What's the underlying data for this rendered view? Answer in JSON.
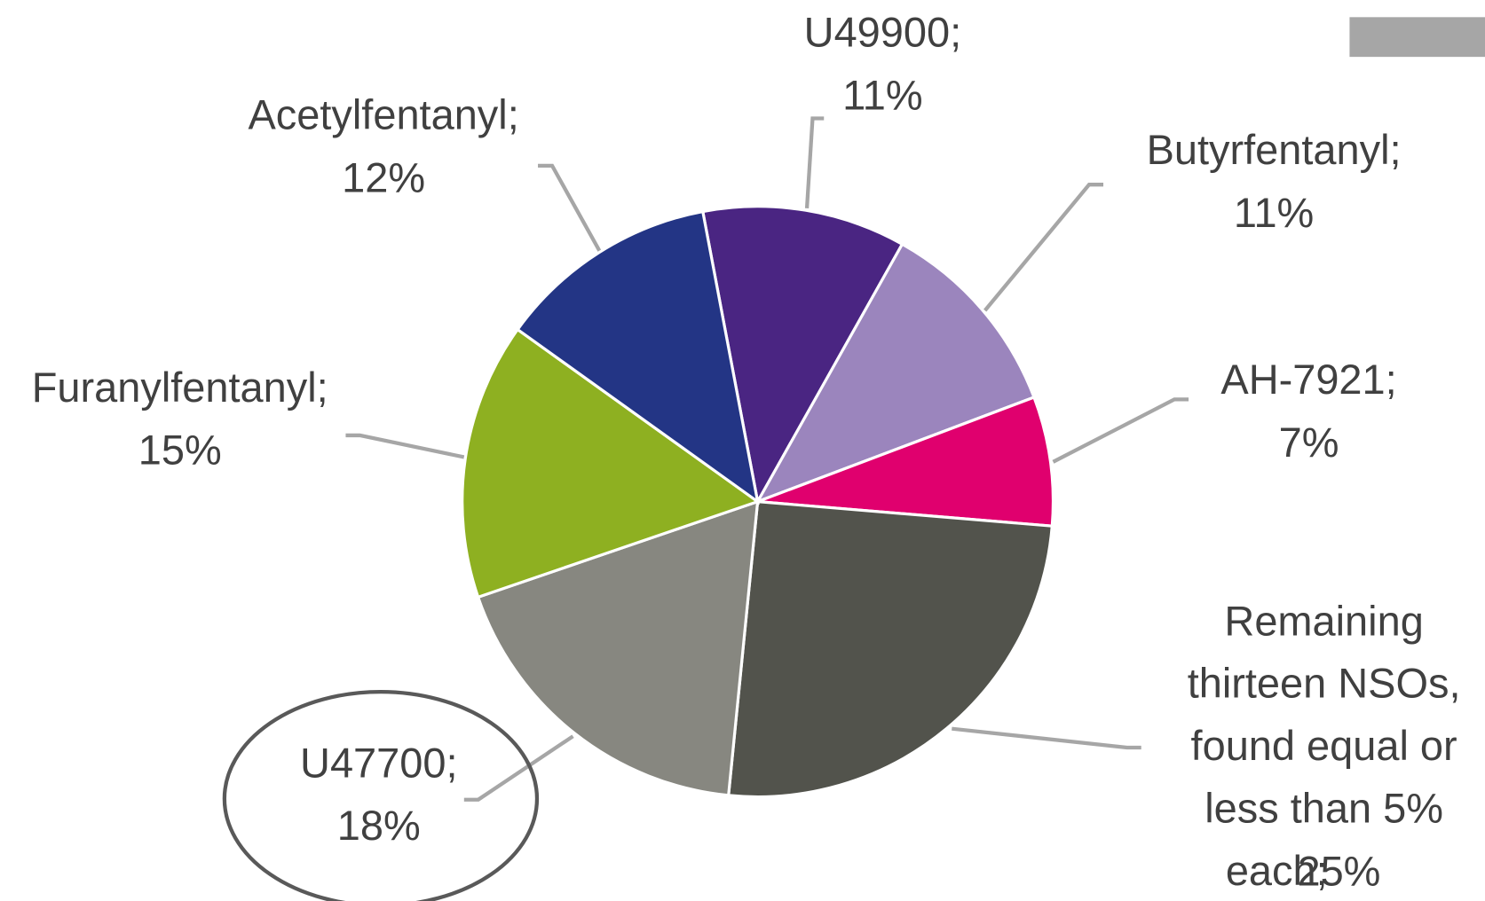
{
  "chart_data": {
    "type": "pie",
    "categories": [
      "U49900;",
      "Butyrfentanyl;",
      "AH-7921;",
      "Remaining thirteen NSOs, found equal or less than 5% each;",
      "U47700;",
      "Furanylfentanyl;",
      "Acetylfentanyl;"
    ],
    "values": [
      11,
      11,
      7,
      25,
      18,
      15,
      12
    ],
    "value_labels": [
      "11%",
      "11%",
      "7%",
      "25%",
      "18%",
      "15%",
      "12%"
    ],
    "colors": [
      "#4a2582",
      "#9b85bd",
      "#e0006e",
      "#52534c",
      "#878780",
      "#8eb021",
      "#233585"
    ]
  }
}
